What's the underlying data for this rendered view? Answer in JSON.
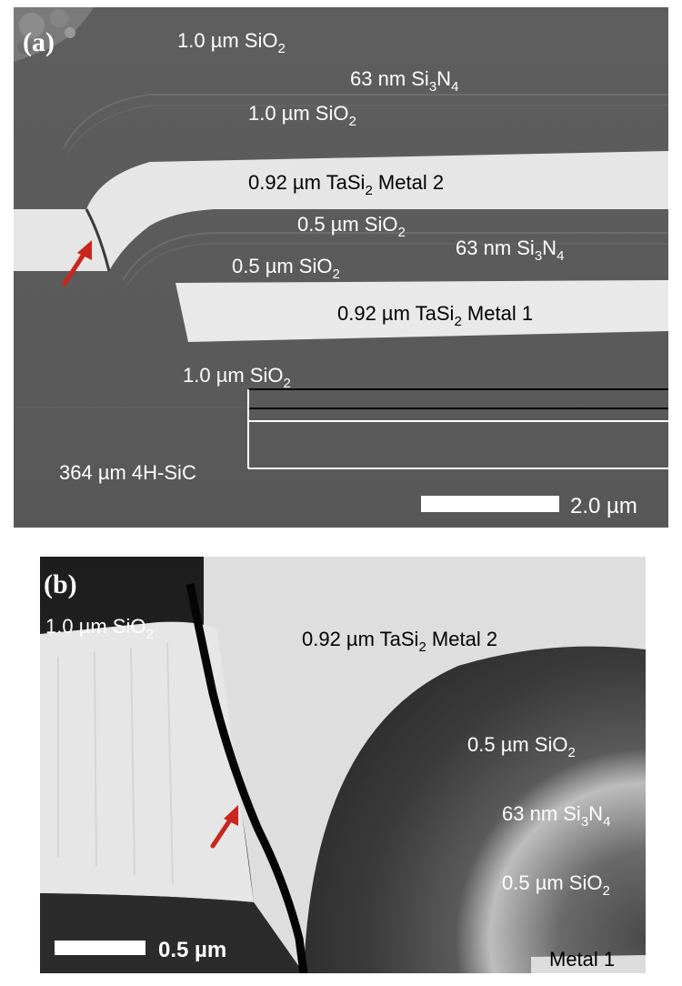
{
  "panel_a": {
    "tag": "(a)",
    "labels": {
      "oxide_top": "1.0 µm SiO",
      "nitride_top": "63 nm Si",
      "oxide_upper": "1.0 µm SiO",
      "metal2": "0.92 µm TaSi",
      "metal2_suffix": " Metal 2",
      "oxide_mid1": "0.5 µm SiO",
      "nitride_mid": "63 nm Si",
      "oxide_mid2": "0.5 µm SiO",
      "metal1": "0.92 µm TaSi",
      "metal1_suffix": " Metal 1",
      "oxide_bottom": "1.0 µm SiO",
      "substrate": "364 µm 4H-SiC"
    },
    "subscripts": {
      "two": "2",
      "three": "3",
      "four": "4"
    },
    "scale_bar": "2.0 µm"
  },
  "panel_b": {
    "tag": "(b)",
    "labels": {
      "oxide_top": "1.0 µm SiO",
      "metal2": "0.92 µm TaSi",
      "metal2_suffix": " Metal 2",
      "oxide_mid1": "0.5 µm SiO",
      "nitride_mid": "63 nm Si",
      "oxide_mid2": "0.5 µm SiO",
      "metal1": "Metal 1"
    },
    "subscripts": {
      "two": "2",
      "three": "3",
      "four": "4"
    },
    "scale_bar": "0.5 µm"
  },
  "colors": {
    "arrow": "#c8261e",
    "metal": "#e9e9e9",
    "oxide": "#5d5d5d",
    "background": "#ffffff"
  }
}
